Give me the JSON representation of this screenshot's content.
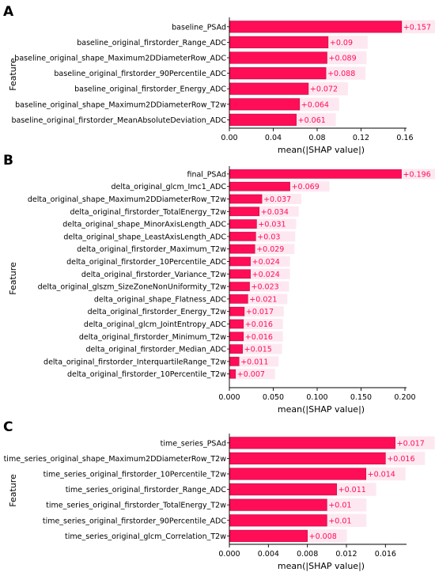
{
  "colors": {
    "bar": "#ff0d57",
    "bar_edge": "#c40a44",
    "bg_band": "#fde2ee",
    "value_text": "#ff0d57",
    "axis": "#000000"
  },
  "chart_data": [
    {
      "panel_label": "A",
      "type": "bar",
      "orientation": "horizontal",
      "ylabel": "Feature",
      "xlabel": "mean(|SHAP value|)",
      "xlim": [
        0,
        0.16
      ],
      "xticks": [
        0,
        0.04,
        0.08,
        0.12,
        0.16
      ],
      "xtick_labels": [
        "0.00",
        "0.04",
        "0.08",
        "0.12",
        "0.16"
      ],
      "categories": [
        "baseline_PSAd",
        "baseline_original_firstorder_Range_ADC",
        "baseline_original_shape_Maximum2DDiameterRow_ADC",
        "baseline_original_firstorder_90Percentile_ADC",
        "baseline_original_firstorder_Energy_ADC",
        "baseline_original_shape_Maximum2DDiameterRow_T2w",
        "baseline_original_firstorder_MeanAbsoluteDeviation_ADC"
      ],
      "values": [
        0.157,
        0.09,
        0.089,
        0.088,
        0.072,
        0.064,
        0.061
      ],
      "value_labels": [
        "+0.157",
        "+0.09",
        "+0.089",
        "+0.088",
        "+0.072",
        "+0.064",
        "+0.061"
      ]
    },
    {
      "panel_label": "B",
      "type": "bar",
      "orientation": "horizontal",
      "ylabel": "Feature",
      "xlabel": "mean(|SHAP value|)",
      "xlim": [
        0,
        0.2
      ],
      "xticks": [
        0,
        0.05,
        0.1,
        0.15,
        0.2
      ],
      "xtick_labels": [
        "0.000",
        "0.050",
        "0.100",
        "0.150",
        "0.200"
      ],
      "categories": [
        "final_PSAd",
        "delta_original_glcm_Imc1_ADC",
        "delta_original_shape_Maximum2DDiameterRow_T2w",
        "delta_original_firstorder_TotalEnergy_T2w",
        "delta_original_shape_MinorAxisLength_ADC",
        "delta_original_shape_LeastAxisLength_ADC",
        "delta_original_firstorder_Maximum_T2w",
        "delta_original_firstorder_10Percentile_ADC",
        "delta_original_firstorder_Variance_T2w",
        "delta_original_glszm_SizeZoneNonUniformity_T2w",
        "delta_original_shape_Flatness_ADC",
        "delta_original_firstorder_Energy_T2w",
        "delta_original_glcm_JointEntropy_ADC",
        "delta_original_firstorder_Minimum_T2w",
        "delta_original_firstorder_Median_ADC",
        "delta_original_firstorder_InterquartileRange_T2w",
        "delta_original_firstorder_10Percentile_T2w"
      ],
      "values": [
        0.196,
        0.069,
        0.037,
        0.034,
        0.031,
        0.03,
        0.029,
        0.024,
        0.024,
        0.023,
        0.021,
        0.017,
        0.016,
        0.016,
        0.015,
        0.011,
        0.007
      ],
      "value_labels": [
        "+0.196",
        "+0.069",
        "+0.037",
        "+0.034",
        "+0.031",
        "+0.03",
        "+0.029",
        "+0.024",
        "+0.024",
        "+0.023",
        "+0.021",
        "+0.017",
        "+0.016",
        "+0.016",
        "+0.015",
        "+0.011",
        "+0.007"
      ]
    },
    {
      "panel_label": "C",
      "type": "bar",
      "orientation": "horizontal",
      "ylabel": "Feature",
      "xlabel": "mean(|SHAP value|)",
      "xlim": [
        0,
        0.018
      ],
      "xticks": [
        0,
        0.004,
        0.008,
        0.012,
        0.016
      ],
      "xtick_labels": [
        "0.000",
        "0.004",
        "0.008",
        "0.012",
        "0.016"
      ],
      "categories": [
        "time_series_PSAd",
        "time_series_original_shape_Maximum2DDiameterRow_T2w",
        "time_series_original_firstorder_10Percentile_T2w",
        "time_series_original_firstorder_Range_ADC",
        "time_series_original_firstorder_TotalEnergy_T2w",
        "time_series_original_firstorder_90Percentile_ADC",
        "time_series_original_glcm_Correlation_T2w"
      ],
      "values": [
        0.017,
        0.016,
        0.014,
        0.011,
        0.01,
        0.01,
        0.008
      ],
      "value_labels": [
        "+0.017",
        "+0.016",
        "+0.014",
        "+0.011",
        "+0.01",
        "+0.01",
        "+0.008"
      ]
    }
  ]
}
